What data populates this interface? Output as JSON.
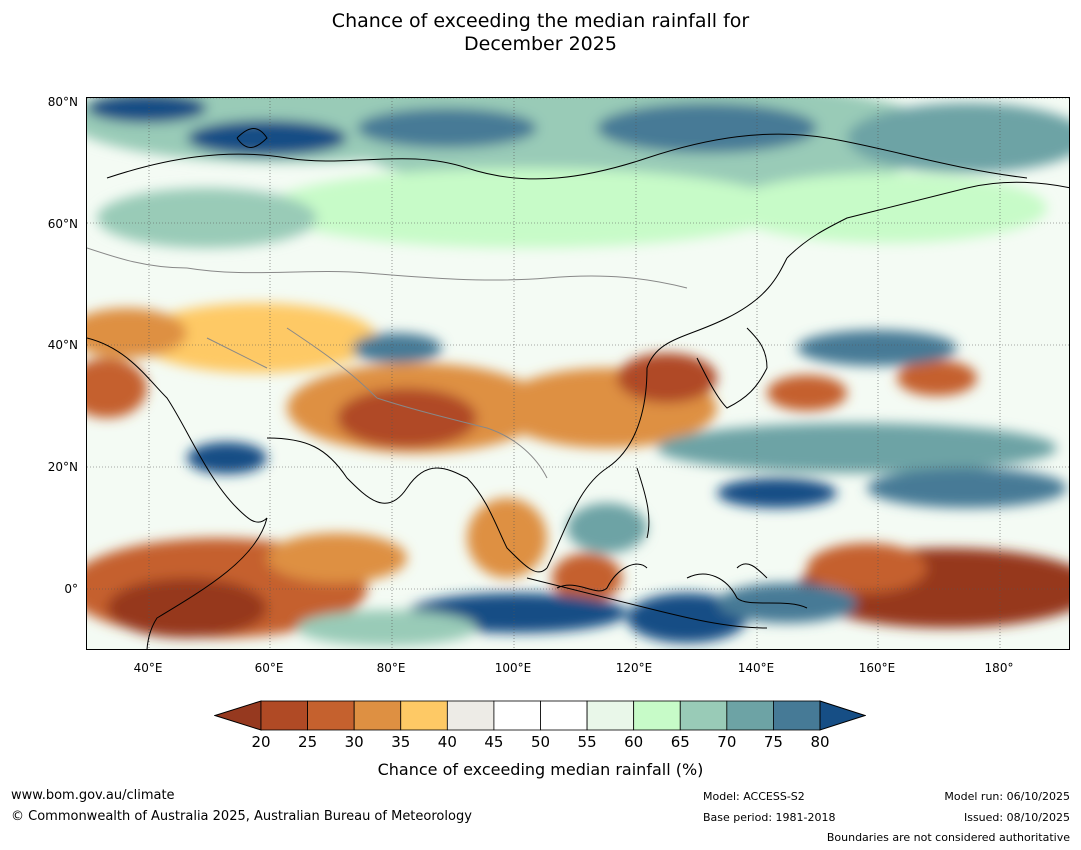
{
  "title_line1": "Chance of exceeding the median rainfall for",
  "title_line2": "December 2025",
  "latitude_labels": [
    "80°N",
    "60°N",
    "40°N",
    "20°N",
    "0°"
  ],
  "longitude_labels": [
    "40°E",
    "60°E",
    "80°E",
    "100°E",
    "120°E",
    "140°E",
    "160°E",
    "180°"
  ],
  "colorbar": {
    "labels": [
      "20",
      "25",
      "30",
      "35",
      "40",
      "45",
      "50",
      "55",
      "60",
      "65",
      "70",
      "75",
      "80"
    ],
    "colors": [
      "#b04a25",
      "#c5612e",
      "#de9042",
      "#fec965",
      "#edebe6",
      "#ffffff",
      "#ffffff",
      "#e9f7e9",
      "#c7fbc8",
      "#99cbb7",
      "#6da3a5",
      "#467a96"
    ],
    "under_color": "#96391f",
    "over_color": "#164e85",
    "title": "Chance of exceeding median rainfall (%)"
  },
  "footer": {
    "website": "www.bom.gov.au/climate",
    "copyright": "© Commonwealth of Australia 2025, Australian Bureau of Meteorology",
    "model": "Model: ACCESS-S2",
    "base_period": "Base period: 1981-2018",
    "model_run": "Model run: 06/10/2025",
    "issued": "Issued: 08/10/2025",
    "disclaimer": "Boundaries are not considered authoritative"
  }
}
